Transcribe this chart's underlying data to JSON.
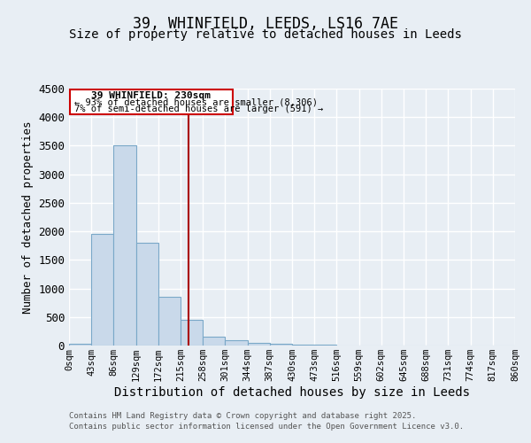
{
  "title": "39, WHINFIELD, LEEDS, LS16 7AE",
  "subtitle": "Size of property relative to detached houses in Leeds",
  "xlabel": "Distribution of detached houses by size in Leeds",
  "ylabel": "Number of detached properties",
  "bar_edges": [
    0,
    43,
    86,
    129,
    172,
    215,
    258,
    301,
    344,
    387,
    430,
    473,
    516,
    559,
    602,
    645,
    688,
    731,
    774,
    817,
    860
  ],
  "bar_heights": [
    30,
    1950,
    3500,
    1800,
    850,
    450,
    160,
    90,
    50,
    25,
    15,
    10,
    5,
    3,
    2,
    1,
    1,
    0,
    0,
    0
  ],
  "bar_color": "#c9d9ea",
  "bar_edgecolor": "#7aa8c8",
  "vline_x": 230,
  "vline_color": "#aa0000",
  "ylim": [
    0,
    4500
  ],
  "xlim": [
    0,
    860
  ],
  "annotation_title": "39 WHINFIELD: 230sqm",
  "annotation_line1": "← 93% of detached houses are smaller (8,306)",
  "annotation_line2": "7% of semi-detached houses are larger (591) →",
  "annotation_box_edgecolor": "#cc0000",
  "footer_line1": "Contains HM Land Registry data © Crown copyright and database right 2025.",
  "footer_line2": "Contains public sector information licensed under the Open Government Licence v3.0.",
  "bg_color": "#e8eef4",
  "grid_color": "#ffffff",
  "title_fontsize": 12,
  "subtitle_fontsize": 10,
  "ylabel_fontsize": 9,
  "xlabel_fontsize": 10,
  "tick_fontsize": 7.5,
  "tick_labels": [
    "0sqm",
    "43sqm",
    "86sqm",
    "129sqm",
    "172sqm",
    "215sqm",
    "258sqm",
    "301sqm",
    "344sqm",
    "387sqm",
    "430sqm",
    "473sqm",
    "516sqm",
    "559sqm",
    "602sqm",
    "645sqm",
    "688sqm",
    "731sqm",
    "774sqm",
    "817sqm",
    "860sqm"
  ]
}
